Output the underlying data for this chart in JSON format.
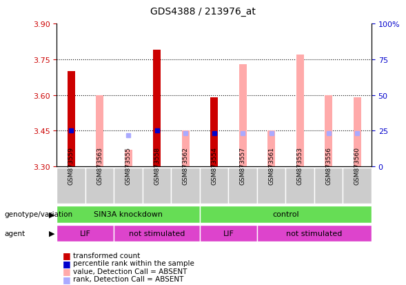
{
  "title": "GDS4388 / 213976_at",
  "samples": [
    "GSM873559",
    "GSM873563",
    "GSM873555",
    "GSM873558",
    "GSM873562",
    "GSM873554",
    "GSM873557",
    "GSM873561",
    "GSM873553",
    "GSM873556",
    "GSM873560"
  ],
  "ylim_left": [
    3.3,
    3.9
  ],
  "ylim_right": [
    0,
    100
  ],
  "yticks_left": [
    3.3,
    3.45,
    3.6,
    3.75,
    3.9
  ],
  "yticks_right": [
    0,
    25,
    50,
    75,
    100
  ],
  "red_bars": [
    3.7,
    null,
    null,
    3.79,
    null,
    3.59,
    null,
    null,
    null,
    null,
    null
  ],
  "pink_bars": [
    null,
    3.6,
    3.37,
    null,
    3.45,
    null,
    3.73,
    3.45,
    3.77,
    3.6,
    3.59
  ],
  "blue_dots": [
    3.45,
    null,
    null,
    3.45,
    null,
    3.44,
    null,
    null,
    null,
    null,
    null
  ],
  "light_blue_dots": [
    null,
    null,
    3.43,
    null,
    3.44,
    null,
    3.44,
    3.44,
    null,
    3.44,
    3.44
  ],
  "bar_width": 0.4,
  "red_color": "#cc0000",
  "pink_color": "#ffaaaa",
  "blue_color": "#0000cc",
  "light_blue_color": "#aaaaff",
  "left_tick_color": "#cc0000",
  "right_tick_color": "#0000cc",
  "green_color": "#66dd55",
  "magenta_color": "#dd44cc"
}
